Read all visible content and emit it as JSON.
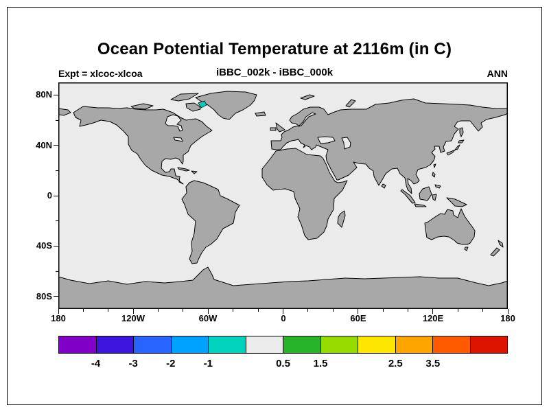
{
  "chart_data": {
    "type": "heatmap",
    "title": "Ocean Potential Temperature at 2116m (in C)",
    "subtitle": "iBBC_002k - iBBC_000k",
    "annotations": {
      "top_left": "Expt = xlcoc-xlcoa",
      "top_right": "ANN"
    },
    "projection": "equirectangular world map, 180W to 180E, 90S to 90N",
    "x_axis": {
      "tick_labels": [
        "180",
        "120W",
        "60W",
        "0",
        "60E",
        "120E",
        "180"
      ],
      "tick_values_deg": [
        -180,
        -120,
        -60,
        0,
        60,
        120,
        180
      ],
      "minor_tick_step_deg": 20
    },
    "y_axis": {
      "tick_labels": [
        "80N",
        "40N",
        "0",
        "40S",
        "80S"
      ],
      "tick_values_deg": [
        80,
        40,
        0,
        -40,
        -80
      ],
      "minor_tick_step_deg": 20
    },
    "colorbar": {
      "segment_count": 12,
      "colors": [
        "#8000c8",
        "#3c14dc",
        "#2864ff",
        "#00a2ff",
        "#00d2be",
        "#ebebeb",
        "#28b428",
        "#96dc00",
        "#ffe600",
        "#ffa500",
        "#ff5a00",
        "#dc1400"
      ],
      "labels": [
        "-4",
        "-3",
        "-2",
        "-1",
        "0.5",
        "1.5",
        "2.5",
        "3.5"
      ],
      "label_positions": [
        1,
        2,
        3,
        4,
        6,
        7,
        9,
        10
      ]
    },
    "map": {
      "land_color": "#a8a8a8",
      "ocean_color": "#ebebeb",
      "coastline_color": "#000000",
      "field_summary": "Difference field lies in the light-gray bin (below 0.5 C) over nearly the entire ocean; one small cyan patch of the next lower bin appears in Baffin Bay near 71N, 67W.",
      "anomaly_patches": [
        {
          "region": "Baffin Bay (~71N, 67W)",
          "color": "#00d2be"
        }
      ]
    }
  }
}
